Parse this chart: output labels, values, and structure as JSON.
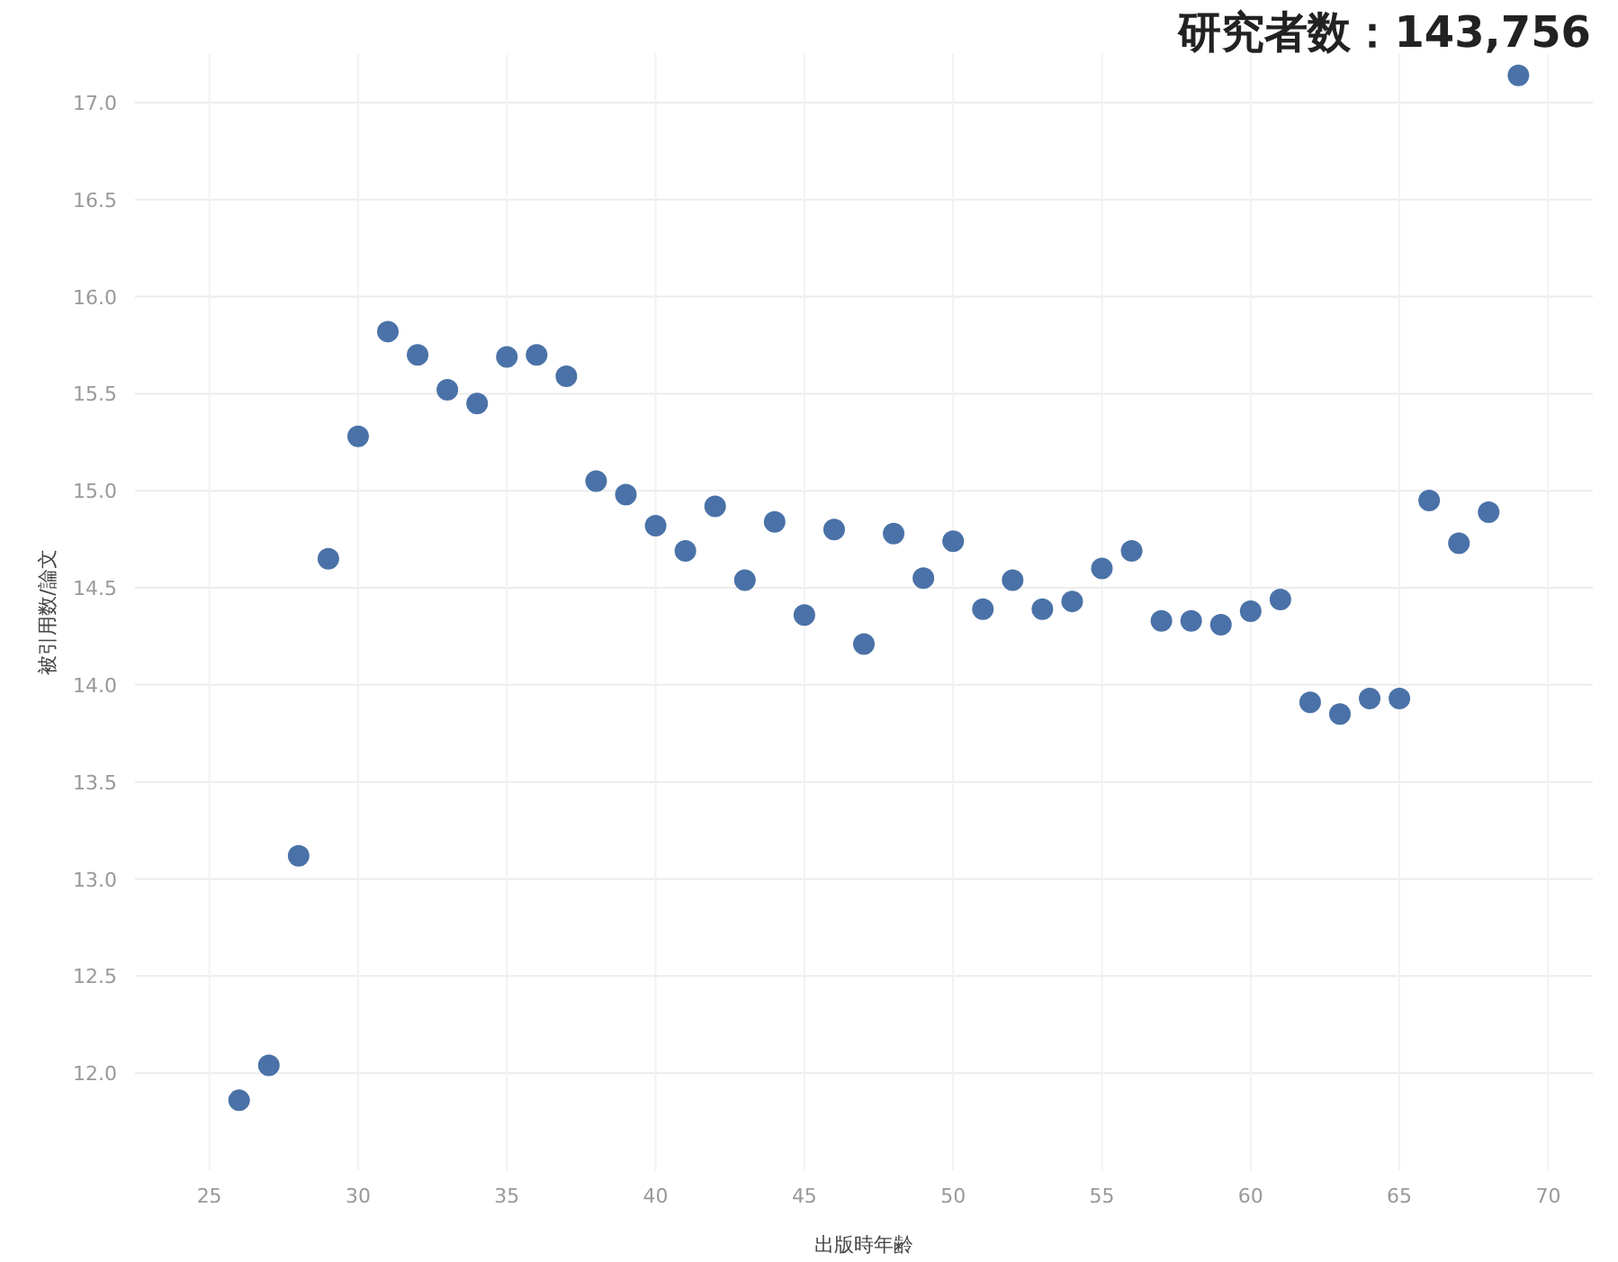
{
  "chart_data": {
    "type": "scatter",
    "title": "研究者数：143,756",
    "xlabel": "出版時年齢",
    "ylabel": "被引用数/論文",
    "x": [
      26,
      27,
      28,
      29,
      30,
      31,
      32,
      33,
      34,
      35,
      36,
      37,
      38,
      39,
      40,
      41,
      42,
      43,
      44,
      45,
      46,
      47,
      48,
      49,
      50,
      51,
      52,
      53,
      54,
      55,
      56,
      57,
      58,
      59,
      60,
      61,
      62,
      63,
      64,
      65,
      66,
      67,
      68,
      69
    ],
    "series": [
      {
        "color": "#4a72a8",
        "values": [
          11.86,
          12.04,
          13.12,
          14.65,
          15.28,
          15.82,
          15.7,
          15.52,
          15.45,
          15.69,
          15.7,
          15.59,
          15.05,
          14.98,
          14.82,
          14.69,
          14.92,
          14.54,
          14.84,
          14.36,
          14.8,
          14.21,
          14.78,
          14.55,
          14.74,
          14.39,
          14.54,
          14.39,
          14.43,
          14.6,
          14.69,
          14.33,
          14.33,
          14.31,
          14.38,
          14.44,
          13.91,
          13.85,
          13.93,
          13.93,
          14.95,
          14.73,
          14.89,
          17.14
        ]
      }
    ],
    "xlim": [
      22.5,
      71.5
    ],
    "ylim": [
      11.5,
      17.25
    ],
    "xticks": [
      25,
      30,
      35,
      40,
      45,
      50,
      55,
      60,
      65,
      70
    ],
    "yticks": [
      {
        "value": 12,
        "label": "12.0"
      },
      {
        "value": 12.5,
        "label": "12.5"
      },
      {
        "value": 13,
        "label": "13.0"
      },
      {
        "value": 13.5,
        "label": "13.5"
      },
      {
        "value": 14,
        "label": "14.0"
      },
      {
        "value": 14.5,
        "label": "14.5"
      },
      {
        "value": 15,
        "label": "15.0"
      },
      {
        "value": 15.5,
        "label": "15.5"
      },
      {
        "value": 16,
        "label": "16.0"
      },
      {
        "value": 16.5,
        "label": "16.5"
      },
      {
        "value": 17,
        "label": "17.0"
      }
    ],
    "grid": true,
    "marker": "circle"
  }
}
